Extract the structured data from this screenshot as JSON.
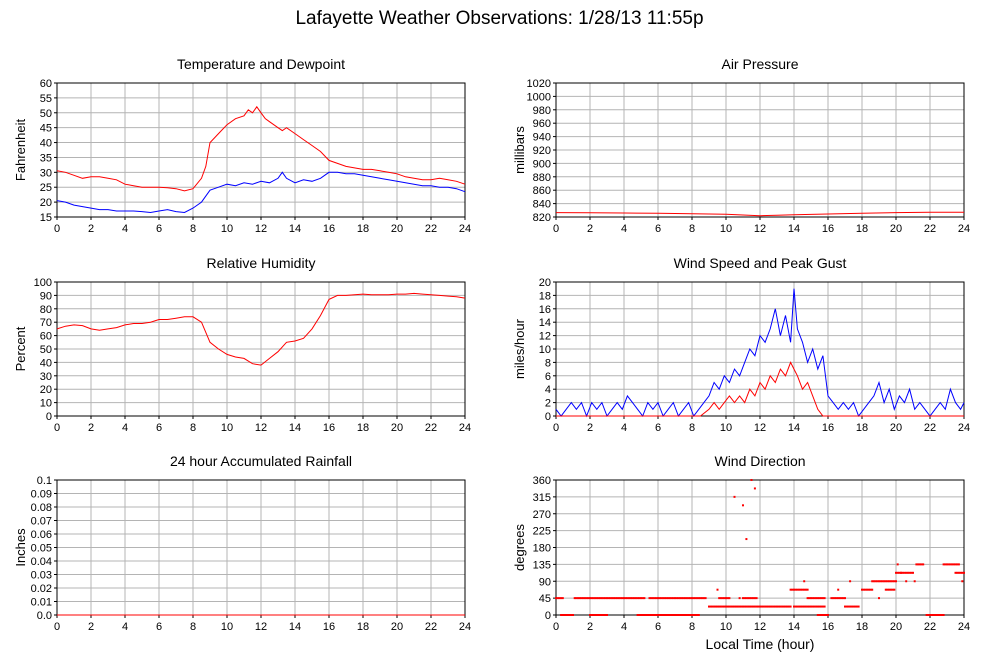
{
  "page": {
    "title": "Lafayette Weather Observations: 1/28/13 11:55p",
    "xlabel": "Local Time (hour)"
  },
  "chart_data": [
    {
      "id": "temp",
      "type": "line",
      "title": "Temperature and Dewpoint",
      "ylabel": "Fahrenheit",
      "xlim": [
        0,
        24
      ],
      "ylim": [
        15,
        60
      ],
      "xticks": [
        0,
        2,
        4,
        6,
        8,
        10,
        12,
        14,
        16,
        18,
        20,
        22,
        24
      ],
      "yticks": [
        15,
        20,
        25,
        30,
        35,
        40,
        45,
        50,
        55,
        60
      ],
      "grid": true,
      "series": [
        {
          "color": "#ff0000",
          "x": [
            0,
            0.5,
            1,
            1.5,
            2,
            2.5,
            3,
            3.5,
            4,
            4.5,
            5,
            5.5,
            6,
            6.5,
            7,
            7.5,
            8,
            8.5,
            8.75,
            9,
            9.5,
            10,
            10.5,
            11,
            11.25,
            11.5,
            11.75,
            12,
            12.25,
            12.5,
            13,
            13.25,
            13.5,
            14,
            14.5,
            15,
            15.5,
            16,
            16.5,
            17,
            17.5,
            18,
            18.5,
            19,
            19.5,
            20,
            20.5,
            21,
            21.5,
            22,
            22.5,
            23,
            23.5,
            24
          ],
          "y": [
            30.5,
            30,
            29,
            28,
            28.5,
            28.5,
            28,
            27.5,
            26,
            25.5,
            25,
            25,
            25,
            24.8,
            24.5,
            23.8,
            24.5,
            28,
            32,
            40,
            43,
            46,
            48,
            49,
            51,
            50,
            52,
            50,
            48,
            47,
            45,
            44,
            45,
            43,
            41,
            39,
            37,
            34,
            33,
            32,
            31.5,
            31,
            31,
            30.5,
            30,
            29.5,
            28.5,
            28,
            27.5,
            27.5,
            28,
            27.5,
            27,
            26
          ]
        },
        {
          "color": "#0000ff",
          "x": [
            0,
            0.5,
            1,
            1.5,
            2,
            2.5,
            3,
            3.5,
            4,
            4.5,
            5,
            5.5,
            6,
            6.5,
            7,
            7.5,
            8,
            8.5,
            9,
            9.5,
            10,
            10.5,
            11,
            11.5,
            12,
            12.5,
            13,
            13.25,
            13.5,
            14,
            14.5,
            15,
            15.5,
            16,
            16.5,
            17,
            17.5,
            18,
            18.5,
            19,
            19.5,
            20,
            20.5,
            21,
            21.5,
            22,
            22.5,
            23,
            23.5,
            24
          ],
          "y": [
            20.5,
            20,
            19,
            18.5,
            18,
            17.5,
            17.5,
            17,
            17,
            17,
            16.8,
            16.5,
            17,
            17.5,
            16.8,
            16.5,
            18,
            20,
            24,
            25,
            26,
            25.5,
            26.5,
            26,
            27,
            26.5,
            28,
            30,
            28,
            26.5,
            27.5,
            27,
            28,
            30,
            30,
            29.5,
            29.5,
            29,
            28.5,
            28,
            27.5,
            27,
            26.5,
            26,
            25.5,
            25.5,
            25,
            25,
            24.5,
            23.5
          ]
        }
      ]
    },
    {
      "id": "pressure",
      "type": "line",
      "title": "Air Pressure",
      "ylabel": "millibars",
      "xlim": [
        0,
        24
      ],
      "ylim": [
        820,
        1020
      ],
      "xticks": [
        0,
        2,
        4,
        6,
        8,
        10,
        12,
        14,
        16,
        18,
        20,
        22,
        24
      ],
      "yticks": [
        820,
        840,
        860,
        880,
        900,
        920,
        940,
        960,
        980,
        1000,
        1020
      ],
      "grid": true,
      "series": [
        {
          "color": "#ff0000",
          "x": [
            0,
            2,
            4,
            6,
            8,
            10,
            11,
            12,
            13,
            14,
            16,
            18,
            20,
            22,
            24
          ],
          "y": [
            826.5,
            826.3,
            826,
            825.5,
            825,
            824,
            823,
            822,
            822.5,
            823.5,
            824.5,
            825.5,
            826.5,
            827,
            827
          ]
        }
      ]
    },
    {
      "id": "humidity",
      "type": "line",
      "title": "Relative Humidity",
      "ylabel": "Percent",
      "xlim": [
        0,
        24
      ],
      "ylim": [
        0,
        100
      ],
      "xticks": [
        0,
        2,
        4,
        6,
        8,
        10,
        12,
        14,
        16,
        18,
        20,
        22,
        24
      ],
      "yticks": [
        0,
        10,
        20,
        30,
        40,
        50,
        60,
        70,
        80,
        90,
        100
      ],
      "grid": true,
      "series": [
        {
          "color": "#ff0000",
          "x": [
            0,
            0.5,
            1,
            1.5,
            2,
            2.5,
            3,
            3.5,
            4,
            4.5,
            5,
            5.5,
            6,
            6.5,
            7,
            7.5,
            8,
            8.5,
            9,
            9.5,
            10,
            10.5,
            11,
            11.5,
            12,
            12.5,
            13,
            13.5,
            14,
            14.5,
            15,
            15.5,
            16,
            16.5,
            17,
            17.5,
            18,
            18.5,
            19,
            19.5,
            20,
            20.5,
            21,
            21.5,
            22,
            22.5,
            23,
            23.5,
            24
          ],
          "y": [
            65,
            67,
            68,
            67.5,
            65,
            64,
            65,
            66,
            68,
            69,
            69,
            70,
            72,
            72,
            73,
            74,
            74,
            70,
            55,
            50,
            46,
            44,
            43,
            39,
            38,
            43,
            48,
            55,
            56,
            58,
            65,
            75,
            87,
            90,
            90,
            90.5,
            91,
            90.5,
            90.5,
            90.5,
            91,
            91,
            91.5,
            91,
            90.5,
            90,
            89.5,
            89,
            88
          ]
        }
      ]
    },
    {
      "id": "wind",
      "type": "line",
      "title": "Wind Speed and Peak Gust",
      "ylabel": "miles/hour",
      "xlim": [
        0,
        24
      ],
      "ylim": [
        0,
        20
      ],
      "xticks": [
        0,
        2,
        4,
        6,
        8,
        10,
        12,
        14,
        16,
        18,
        20,
        22,
        24
      ],
      "yticks": [
        0,
        2,
        4,
        6,
        8,
        10,
        12,
        14,
        16,
        18,
        20
      ],
      "grid": true,
      "series": [
        {
          "color": "#0000ff",
          "x": [
            0,
            0.3,
            0.6,
            0.9,
            1.2,
            1.5,
            1.8,
            2.1,
            2.4,
            2.7,
            3,
            3.3,
            3.6,
            3.9,
            4.2,
            4.5,
            4.8,
            5.1,
            5.4,
            5.7,
            6,
            6.3,
            6.6,
            6.9,
            7.2,
            7.5,
            7.8,
            8.1,
            8.4,
            8.7,
            9,
            9.3,
            9.6,
            9.9,
            10.2,
            10.5,
            10.8,
            11.1,
            11.4,
            11.7,
            12,
            12.3,
            12.6,
            12.9,
            13.2,
            13.5,
            13.8,
            14,
            14.2,
            14.5,
            14.8,
            15.1,
            15.4,
            15.7,
            16,
            16.3,
            16.6,
            16.9,
            17.2,
            17.5,
            17.8,
            18.1,
            18.4,
            18.7,
            19,
            19.3,
            19.6,
            19.9,
            20.2,
            20.5,
            20.8,
            21.1,
            21.4,
            21.7,
            22,
            22.3,
            22.6,
            22.9,
            23.2,
            23.5,
            23.8,
            24
          ],
          "y": [
            1,
            0,
            1,
            2,
            1,
            2,
            0,
            2,
            1,
            2,
            0,
            1,
            2,
            1,
            3,
            2,
            1,
            0,
            2,
            1,
            2,
            0,
            1,
            2,
            0,
            1,
            2,
            0,
            1,
            2,
            3,
            5,
            4,
            6,
            5,
            7,
            6,
            8,
            10,
            9,
            12,
            11,
            13,
            16,
            12,
            15,
            11,
            19,
            13,
            11,
            8,
            10,
            7,
            9,
            3,
            2,
            1,
            2,
            1,
            2,
            0,
            1,
            2,
            3,
            5,
            2,
            4,
            1,
            3,
            2,
            4,
            1,
            2,
            1,
            0,
            1,
            2,
            1,
            4,
            2,
            1,
            2
          ]
        },
        {
          "color": "#ff0000",
          "x": [
            0,
            8.5,
            9,
            9.3,
            9.6,
            9.9,
            10.2,
            10.5,
            10.8,
            11.1,
            11.4,
            11.7,
            12,
            12.3,
            12.6,
            12.9,
            13.2,
            13.5,
            13.8,
            14,
            14.2,
            14.5,
            14.8,
            15.1,
            15.4,
            15.7,
            16,
            24
          ],
          "y": [
            0,
            0,
            1,
            2,
            1,
            2,
            3,
            2,
            3,
            2,
            4,
            3,
            5,
            4,
            6,
            5,
            7,
            6,
            8,
            7,
            6,
            4,
            5,
            3,
            1,
            0,
            0,
            0
          ]
        }
      ]
    },
    {
      "id": "rain",
      "type": "line",
      "title": "24 hour Accumulated Rainfall",
      "ylabel": "Inches",
      "xlim": [
        0,
        24
      ],
      "ylim": [
        0,
        0.1
      ],
      "xticks": [
        0,
        2,
        4,
        6,
        8,
        10,
        12,
        14,
        16,
        18,
        20,
        22,
        24
      ],
      "yticks": [
        0.0,
        0.01,
        0.02,
        0.03,
        0.04,
        0.05,
        0.06,
        0.07,
        0.08,
        0.09,
        0.1
      ],
      "ytick_labels": [
        "0.0",
        "0.01",
        "0.02",
        "0.03",
        "0.04",
        "0.05",
        "0.06",
        "0.07",
        "0.08",
        "0.09",
        "0.1"
      ],
      "grid": true,
      "series": [
        {
          "color": "#ff0000",
          "x": [
            0,
            24
          ],
          "y": [
            0,
            0
          ]
        }
      ]
    },
    {
      "id": "direction",
      "type": "scatter",
      "title": "Wind Direction",
      "ylabel": "degrees",
      "xlim": [
        0,
        24
      ],
      "ylim": [
        0,
        360
      ],
      "xticks": [
        0,
        2,
        4,
        6,
        8,
        10,
        12,
        14,
        16,
        18,
        20,
        22,
        24
      ],
      "yticks": [
        0,
        45,
        90,
        135,
        180,
        225,
        270,
        315,
        360
      ],
      "grid": true,
      "series": [
        {
          "color": "#ff0000",
          "points": [
            {
              "x1": 0.0,
              "x2": 0.4,
              "y": 45
            },
            {
              "x1": 0.3,
              "x2": 1.0,
              "y": 0
            },
            {
              "x1": 1.1,
              "x2": 5.2,
              "y": 45
            },
            {
              "x1": 2.0,
              "x2": 3.0,
              "y": 0
            },
            {
              "x1": 4.8,
              "x2": 7.4,
              "y": 0
            },
            {
              "x1": 5.5,
              "x2": 8.8,
              "y": 45
            },
            {
              "x1": 7.5,
              "x2": 8.4,
              "y": 0
            },
            {
              "x1": 9.0,
              "x2": 13.8,
              "y": 22.5
            },
            {
              "x1": 9.6,
              "x2": 10.2,
              "y": 45
            },
            {
              "x1": 11.0,
              "x2": 11.8,
              "y": 45
            },
            {
              "x1": 13.8,
              "x2": 14.8,
              "y": 67.5
            },
            {
              "x1": 14.0,
              "x2": 15.8,
              "y": 22.5
            },
            {
              "x1": 14.8,
              "x2": 15.8,
              "y": 45
            },
            {
              "x1": 15.4,
              "x2": 16.0,
              "y": 0
            },
            {
              "x1": 16.2,
              "x2": 17.0,
              "y": 45
            },
            {
              "x1": 17.0,
              "x2": 17.8,
              "y": 22.5
            },
            {
              "x1": 18.0,
              "x2": 18.6,
              "y": 67.5
            },
            {
              "x1": 18.6,
              "x2": 20.0,
              "y": 90
            },
            {
              "x1": 19.4,
              "x2": 19.9,
              "y": 67.5
            },
            {
              "x1": 20.0,
              "x2": 20.3,
              "y": 112.5
            },
            {
              "x1": 20.3,
              "x2": 21.0,
              "y": 112.5
            },
            {
              "x1": 21.2,
              "x2": 21.6,
              "y": 135
            },
            {
              "x1": 21.8,
              "x2": 22.8,
              "y": 0
            },
            {
              "x1": 22.8,
              "x2": 23.7,
              "y": 135
            },
            {
              "x1": 23.5,
              "x2": 24.0,
              "y": 112.5
            }
          ],
          "singles": [
            {
              "x": 10.5,
              "y": 315
            },
            {
              "x": 11.0,
              "y": 292.5
            },
            {
              "x": 11.2,
              "y": 202.5
            },
            {
              "x": 11.5,
              "y": 360
            },
            {
              "x": 11.7,
              "y": 337.5
            },
            {
              "x": 9.5,
              "y": 67.5
            },
            {
              "x": 10.8,
              "y": 45
            },
            {
              "x": 14.6,
              "y": 90
            },
            {
              "x": 16.6,
              "y": 67.5
            },
            {
              "x": 17.3,
              "y": 90
            },
            {
              "x": 19.0,
              "y": 45
            },
            {
              "x": 20.1,
              "y": 135
            },
            {
              "x": 20.6,
              "y": 90
            },
            {
              "x": 21.1,
              "y": 90
            },
            {
              "x": 23.9,
              "y": 90
            }
          ]
        }
      ]
    }
  ]
}
